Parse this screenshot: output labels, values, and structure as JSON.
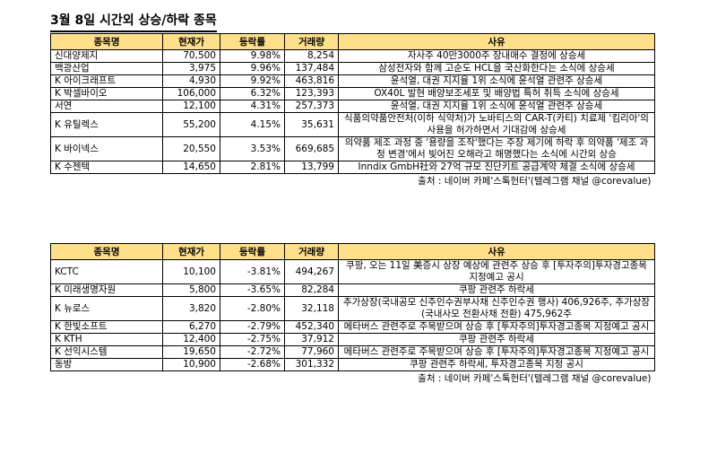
{
  "title": "3월 8일  시간외 상승/하락 종목",
  "headers": [
    "종목명",
    "현재가",
    "등락률",
    "거래량",
    "사유"
  ],
  "rising": [
    {
      "name": "신대양제지",
      "price": "70,500",
      "change": "9.98%",
      "volume": "8,254",
      "reason": "자사주 40만3000주 장내매수 결정에 상승세"
    },
    {
      "name": "백광산업",
      "price": "3,975",
      "change": "9.96%",
      "volume": "137,484",
      "reason": "삼성전자와 함께 고순도 HCL을 국산화한다는 소식에 상승세"
    },
    {
      "name": "K 아이크래프트",
      "price": "4,930",
      "change": "9.92%",
      "volume": "463,816",
      "reason": "윤석열, 대권 지지율 1위 소식에 윤석열 관련주 상승세"
    },
    {
      "name": "K 박셀바이오",
      "price": "106,000",
      "change": "6.32%",
      "volume": "123,393",
      "reason": "OX40L 발현 배양보조세포 및 배양법 특허 취득 소식에 상승세"
    },
    {
      "name": "서연",
      "price": "12,100",
      "change": "4.31%",
      "volume": "257,373",
      "reason": "윤석열, 대권 지지율 1위 소식에 윤석열 관련주 상승세"
    },
    {
      "name": "K 유틸렉스",
      "price": "55,200",
      "change": "4.15%",
      "volume": "35,631",
      "reason": "식품의약품안전처(이하 식약처)가 노바티스의 CAR-T(카티) 치료제 '킴리아'의 사용을 허가하면서 기대감에 상승세"
    },
    {
      "name": "K 바이넥스",
      "price": "20,550",
      "change": "3.53%",
      "volume": "669,685",
      "reason": "의약품 제조 과정 중 '용량을 조작'했다는 주장 제기에 하락 후 의약품 '제조 과정 변경'에서 빚어진 오해라고 해명했다는 소식에 시간외 상승"
    },
    {
      "name": "K 수젠텍",
      "price": "14,650",
      "change": "2.81%",
      "volume": "13,799",
      "reason": "Inndix GmbH社와 27억 규모 진단키트 공급계약 체결 소식에 상승세"
    }
  ],
  "falling": [
    {
      "name": "KCTC",
      "price": "10,100",
      "change": "-3.81%",
      "volume": "494,267",
      "reason": "쿠팡, 오는 11일 美증시 상장 예상에 관련주 상승 후 [투자주의]투자경고종목 지정예고 공시"
    },
    {
      "name": "K 미래생명자원",
      "price": "5,800",
      "change": "-3.65%",
      "volume": "82,284",
      "reason": "쿠팡 관련주 하락세"
    },
    {
      "name": "K 뉴로스",
      "price": "3,820",
      "change": "-2.80%",
      "volume": "32,118",
      "reason": "추가상장(국내공모 신주인수권부사채 신주인수권 행사) 406,926주, 추가상장(국내사모 전환사채 전환) 475,962주"
    },
    {
      "name": "K 한빛소프트",
      "price": "6,270",
      "change": "-2.79%",
      "volume": "452,340",
      "reason": "메타버스 관련주로 주목받으며 상승 후 [투자주의]투자경고종목 지정예고 공시"
    },
    {
      "name": "K KTH",
      "price": "12,400",
      "change": "-2.75%",
      "volume": "37,912",
      "reason": "쿠팡 관련주 하락세"
    },
    {
      "name": "K 선익시스템",
      "price": "19,650",
      "change": "-2.72%",
      "volume": "77,960",
      "reason": "메타버스 관련주로 주목받으며 상승 후 [투자주의]투자경고종목 지정예고 공시"
    },
    {
      "name": "동방",
      "price": "10,900",
      "change": "-2.68%",
      "volume": "301,332",
      "reason": "쿠팡 관련주 하락세, 투자경고종목 지정 공시"
    }
  ],
  "source": "출처 : 네이버 카페'스톡헌터'(텔레그램 채널 @corevalue)"
}
